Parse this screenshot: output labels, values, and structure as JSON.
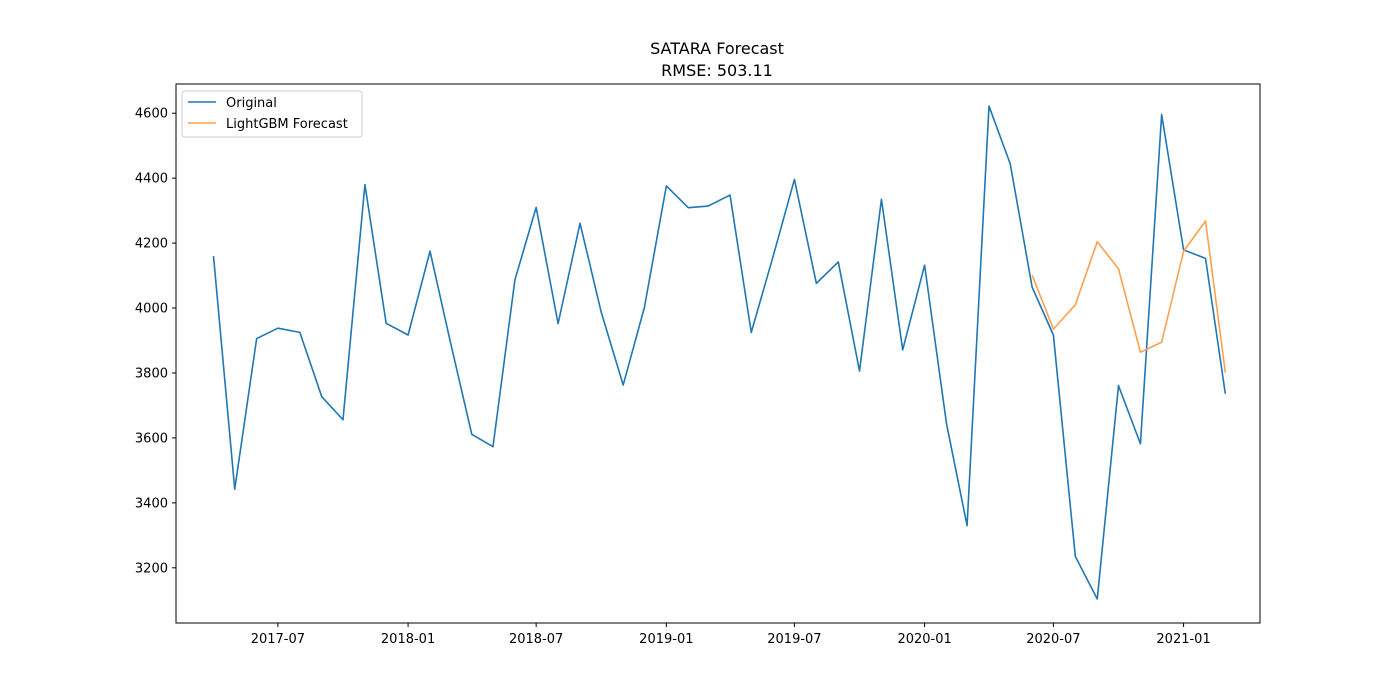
{
  "chart_data": {
    "type": "line",
    "title": "SATARA Forecast",
    "subtitle": "RMSE: 503.11",
    "xlabel": "",
    "ylabel": "",
    "x_ticks": [
      "2017-07",
      "2018-01",
      "2018-07",
      "2019-01",
      "2019-07",
      "2020-01",
      "2020-07",
      "2021-01"
    ],
    "y_ticks": [
      3200,
      3400,
      3600,
      3800,
      4000,
      4200,
      4400,
      4600
    ],
    "ylim": [
      3030,
      4690
    ],
    "xlim": [
      "2017-02-07",
      "2021-04-19"
    ],
    "legend_position": "top-left",
    "grid": false,
    "series": [
      {
        "name": "Original",
        "color": "#1f77b4",
        "x": [
          "2017-04-01",
          "2017-05-01",
          "2017-06-01",
          "2017-07-01",
          "2017-08-01",
          "2017-09-01",
          "2017-10-01",
          "2017-11-01",
          "2017-12-01",
          "2018-01-01",
          "2018-02-01",
          "2018-03-01",
          "2018-04-01",
          "2018-05-01",
          "2018-06-01",
          "2018-07-01",
          "2018-08-01",
          "2018-09-01",
          "2018-10-01",
          "2018-11-01",
          "2018-12-01",
          "2019-01-01",
          "2019-02-01",
          "2019-03-01",
          "2019-04-01",
          "2019-05-01",
          "2019-06-01",
          "2019-07-01",
          "2019-08-01",
          "2019-09-01",
          "2019-10-01",
          "2019-11-01",
          "2019-12-01",
          "2020-01-01",
          "2020-02-01",
          "2020-03-01",
          "2020-04-01",
          "2020-05-01",
          "2020-06-01",
          "2020-07-01",
          "2020-08-01",
          "2020-09-01",
          "2020-10-01",
          "2020-11-01",
          "2020-12-01",
          "2021-01-01",
          "2021-02-01",
          "2021-03-01"
        ],
        "values": [
          4160,
          3442,
          3906,
          3938,
          3925,
          3727,
          3656,
          4380,
          3953,
          3917,
          4175,
          3903,
          3611,
          3573,
          4087,
          4310,
          3952,
          4261,
          3987,
          3763,
          4002,
          4376,
          4309,
          4314,
          4348,
          3925,
          4160,
          4396,
          4076,
          4142,
          3806,
          4335,
          3871,
          4132,
          3643,
          3330,
          4622,
          4444,
          4064,
          3917,
          3235,
          3104,
          3761,
          3582,
          4596,
          4179,
          4153,
          3736
        ]
      },
      {
        "name": "LightGBM Forecast",
        "color": "#ffa04f",
        "x": [
          "2020-06-01",
          "2020-07-01",
          "2020-08-01",
          "2020-09-01",
          "2020-10-01",
          "2020-11-01",
          "2020-12-01",
          "2021-01-01",
          "2021-02-01",
          "2021-03-01"
        ],
        "values": [
          4101,
          3935,
          4010,
          4204,
          4121,
          3864,
          3895,
          4175,
          4268,
          3801
        ]
      }
    ]
  }
}
